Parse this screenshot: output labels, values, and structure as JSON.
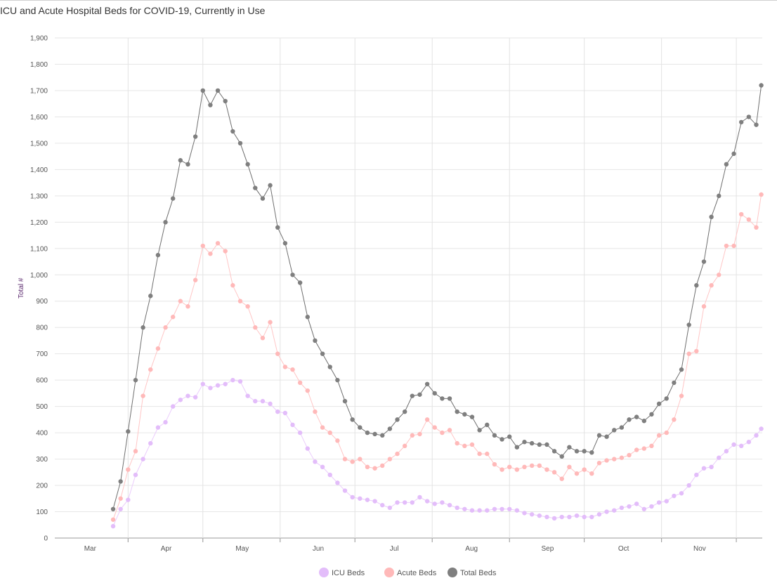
{
  "chart_data": {
    "type": "line",
    "title": "ICU and Acute Hospital Beds for COVID-19, Currently in Use",
    "xlabel": "",
    "ylabel": "Total #",
    "ylim": [
      0,
      1900
    ],
    "yticks": [
      0,
      100,
      200,
      300,
      400,
      500,
      600,
      700,
      800,
      900,
      1000,
      1100,
      1200,
      1300,
      1400,
      1500,
      1600,
      1700,
      1800,
      1900
    ],
    "ytick_labels": [
      "0",
      "100",
      "200",
      "300",
      "400",
      "500",
      "600",
      "700",
      "800",
      "900",
      "1,000",
      "1,100",
      "1,200",
      "1,300",
      "1,400",
      "1,500",
      "1,600",
      "1,700",
      "1,800",
      "1,900"
    ],
    "xlim": [
      "Mar 3",
      "Dec 11"
    ],
    "month_labels": [
      "Mar",
      "Apr",
      "May",
      "Jun",
      "Jul",
      "Aug",
      "Sep",
      "Oct",
      "Nov"
    ],
    "grid": true,
    "legend_position": "bottom-center",
    "x": [
      "Mar 26",
      "Mar 29",
      "Apr 1",
      "Apr 4",
      "Apr 7",
      "Apr 10",
      "Apr 13",
      "Apr 16",
      "Apr 19",
      "Apr 22",
      "Apr 25",
      "Apr 28",
      "May 1",
      "May 4",
      "May 7",
      "May 10",
      "May 13",
      "May 16",
      "May 19",
      "May 22",
      "May 25",
      "May 28",
      "May 31",
      "Jun 3",
      "Jun 6",
      "Jun 9",
      "Jun 12",
      "Jun 15",
      "Jun 18",
      "Jun 21",
      "Jun 24",
      "Jun 27",
      "Jun 30",
      "Jul 3",
      "Jul 6",
      "Jul 9",
      "Jul 12",
      "Jul 15",
      "Jul 18",
      "Jul 21",
      "Jul 24",
      "Jul 27",
      "Jul 30",
      "Aug 2",
      "Aug 5",
      "Aug 8",
      "Aug 11",
      "Aug 14",
      "Aug 17",
      "Aug 20",
      "Aug 23",
      "Aug 26",
      "Aug 29",
      "Sep 1",
      "Sep 4",
      "Sep 7",
      "Sep 10",
      "Sep 13",
      "Sep 16",
      "Sep 19",
      "Sep 22",
      "Sep 25",
      "Sep 28",
      "Oct 1",
      "Oct 4",
      "Oct 7",
      "Oct 10",
      "Oct 13",
      "Oct 16",
      "Oct 19",
      "Oct 22",
      "Oct 25",
      "Oct 28",
      "Oct 31",
      "Nov 3",
      "Nov 6",
      "Nov 9",
      "Nov 12",
      "Nov 15",
      "Nov 18",
      "Nov 21",
      "Nov 24",
      "Nov 27",
      "Nov 30",
      "Dec 3",
      "Dec 6",
      "Dec 9",
      "Dec 11"
    ],
    "series": [
      {
        "name": "ICU Beds",
        "color": "#e3bdfa",
        "line_color": "#ebcdfc",
        "values": [
          45,
          110,
          145,
          240,
          300,
          360,
          420,
          440,
          500,
          525,
          540,
          535,
          585,
          570,
          580,
          585,
          600,
          595,
          540,
          520,
          520,
          510,
          480,
          475,
          430,
          400,
          340,
          290,
          270,
          240,
          210,
          180,
          155,
          150,
          145,
          140,
          125,
          115,
          135,
          135,
          135,
          155,
          140,
          130,
          135,
          125,
          115,
          110,
          105,
          105,
          105,
          110,
          110,
          110,
          105,
          95,
          90,
          85,
          80,
          75,
          80,
          80,
          85,
          80,
          80,
          90,
          100,
          105,
          115,
          120,
          130,
          110,
          120,
          135,
          140,
          160,
          170,
          200,
          240,
          265,
          270,
          305,
          330,
          355,
          350,
          365,
          390,
          415
        ]
      },
      {
        "name": "Acute Beds",
        "color": "#ffb9b9",
        "line_color": "#ffc6c6",
        "values": [
          70,
          150,
          260,
          330,
          540,
          640,
          720,
          800,
          840,
          900,
          880,
          980,
          1110,
          1080,
          1120,
          1090,
          960,
          900,
          880,
          800,
          760,
          820,
          700,
          650,
          640,
          590,
          560,
          480,
          420,
          400,
          370,
          300,
          290,
          300,
          270,
          265,
          275,
          300,
          320,
          350,
          390,
          395,
          450,
          420,
          400,
          410,
          360,
          350,
          355,
          320,
          320,
          280,
          260,
          270,
          260,
          270,
          275,
          275,
          260,
          250,
          225,
          270,
          245,
          260,
          245,
          285,
          295,
          300,
          305,
          315,
          335,
          340,
          350,
          390,
          400,
          450,
          540,
          700,
          710,
          880,
          960,
          1000,
          1110,
          1110,
          1230,
          1210,
          1180,
          1305
        ]
      },
      {
        "name": "Total Beds",
        "color": "#7f7f7f",
        "line_color": "#6f6f6f",
        "values": [
          110,
          215,
          405,
          600,
          800,
          920,
          1075,
          1200,
          1290,
          1435,
          1420,
          1525,
          1700,
          1645,
          1700,
          1660,
          1545,
          1500,
          1420,
          1330,
          1290,
          1340,
          1180,
          1120,
          1000,
          970,
          840,
          750,
          700,
          650,
          600,
          520,
          450,
          420,
          400,
          395,
          390,
          415,
          450,
          480,
          540,
          545,
          585,
          550,
          530,
          530,
          480,
          470,
          460,
          410,
          430,
          390,
          375,
          385,
          345,
          365,
          360,
          355,
          355,
          330,
          310,
          345,
          330,
          330,
          325,
          390,
          385,
          410,
          420,
          450,
          460,
          445,
          470,
          510,
          530,
          590,
          640,
          810,
          960,
          1050,
          1220,
          1300,
          1420,
          1460,
          1580,
          1600,
          1570,
          1720
        ]
      }
    ]
  }
}
